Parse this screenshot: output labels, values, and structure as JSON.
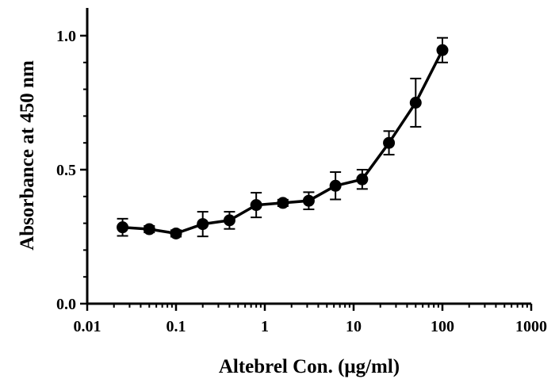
{
  "chart_data": {
    "type": "line",
    "xlabel": "Altebrel Con. (μg/ml)",
    "ylabel": "Absorbance at 450 nm",
    "x_scale": "log",
    "xlim": [
      0.01,
      1000
    ],
    "ylim": [
      0,
      1.1
    ],
    "x_ticks": [
      0.01,
      0.1,
      1,
      10,
      100,
      1000
    ],
    "x_tick_labels": [
      "0.01",
      "0.1",
      "1",
      "10",
      "100",
      "1000"
    ],
    "y_ticks": [
      0,
      0.5,
      1.0
    ],
    "y_tick_labels": [
      "0.0",
      "0.5",
      "1.0"
    ],
    "grid": false,
    "legend": "none",
    "colors": {
      "series": "#000000"
    },
    "series": [
      {
        "x": [
          0.025,
          0.05,
          0.1,
          0.2,
          0.4,
          0.8,
          1.6,
          3.125,
          6.25,
          12.5,
          25,
          50,
          100
        ],
        "values": [
          0.285,
          0.278,
          0.262,
          0.297,
          0.311,
          0.368,
          0.376,
          0.384,
          0.44,
          0.464,
          0.6,
          0.75,
          0.946
        ],
        "errors": [
          0.032,
          0.012,
          0.012,
          0.046,
          0.032,
          0.046,
          0.012,
          0.032,
          0.051,
          0.036,
          0.044,
          0.09,
          0.046
        ]
      }
    ]
  }
}
